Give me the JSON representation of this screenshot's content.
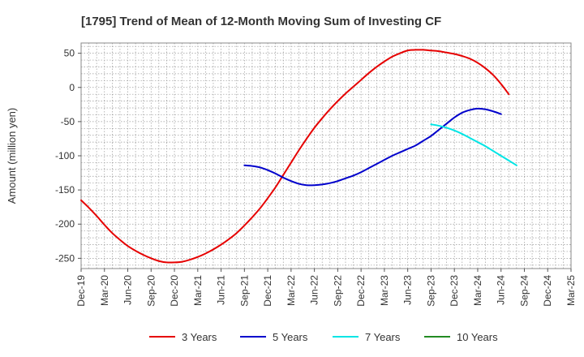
{
  "chart_data": {
    "type": "line",
    "title": "[1795]  Trend of Mean of 12-Month Moving Sum of Investing CF",
    "ylabel": "Amount (million yen)",
    "xlabel": "",
    "ylim": [
      -265,
      65
    ],
    "yticks": [
      50,
      0,
      -50,
      -100,
      -150,
      -200,
      -250
    ],
    "x_tick_labels": [
      "Dec-19",
      "Mar-20",
      "Jun-20",
      "Sep-20",
      "Dec-20",
      "Mar-21",
      "Jun-21",
      "Sep-21",
      "Dec-21",
      "Mar-22",
      "Jun-22",
      "Sep-22",
      "Dec-22",
      "Mar-23",
      "Jun-23",
      "Sep-23",
      "Dec-23",
      "Mar-24",
      "Jun-24",
      "Sep-24",
      "Dec-24",
      "Mar-25"
    ],
    "grid": true,
    "legend_position": "bottom",
    "series": [
      {
        "name": "3 Years",
        "color": "#e60000",
        "points": [
          [
            "Dec-19",
            -165
          ],
          [
            "Jan-20",
            -176
          ],
          [
            "Feb-20",
            -188
          ],
          [
            "Mar-20",
            -201
          ],
          [
            "Apr-20",
            -213
          ],
          [
            "May-20",
            -223
          ],
          [
            "Jun-20",
            -232
          ],
          [
            "Jul-20",
            -239
          ],
          [
            "Aug-20",
            -245
          ],
          [
            "Sep-20",
            -250
          ],
          [
            "Oct-20",
            -254
          ],
          [
            "Nov-20",
            -256
          ],
          [
            "Dec-20",
            -256
          ],
          [
            "Jan-21",
            -255
          ],
          [
            "Feb-21",
            -252
          ],
          [
            "Mar-21",
            -248
          ],
          [
            "Apr-21",
            -243
          ],
          [
            "May-21",
            -237
          ],
          [
            "Jun-21",
            -230
          ],
          [
            "Jul-21",
            -222
          ],
          [
            "Aug-21",
            -213
          ],
          [
            "Sep-21",
            -202
          ],
          [
            "Oct-21",
            -190
          ],
          [
            "Nov-21",
            -177
          ],
          [
            "Dec-21",
            -162
          ],
          [
            "Jan-22",
            -146
          ],
          [
            "Feb-22",
            -128
          ],
          [
            "Mar-22",
            -110
          ],
          [
            "Apr-22",
            -92
          ],
          [
            "May-22",
            -75
          ],
          [
            "Jun-22",
            -59
          ],
          [
            "Jul-22",
            -45
          ],
          [
            "Aug-22",
            -32
          ],
          [
            "Sep-22",
            -20
          ],
          [
            "Oct-22",
            -9
          ],
          [
            "Nov-22",
            1
          ],
          [
            "Dec-22",
            11
          ],
          [
            "Jan-23",
            21
          ],
          [
            "Feb-23",
            30
          ],
          [
            "Mar-23",
            38
          ],
          [
            "Apr-23",
            45
          ],
          [
            "May-23",
            50
          ],
          [
            "Jun-23",
            54
          ],
          [
            "Jul-23",
            55
          ],
          [
            "Aug-23",
            55
          ],
          [
            "Sep-23",
            54
          ],
          [
            "Oct-23",
            53
          ],
          [
            "Nov-23",
            51
          ],
          [
            "Dec-23",
            49
          ],
          [
            "Jan-24",
            46
          ],
          [
            "Feb-24",
            42
          ],
          [
            "Mar-24",
            36
          ],
          [
            "Apr-24",
            28
          ],
          [
            "May-24",
            18
          ],
          [
            "Jun-24",
            5
          ],
          [
            "Jul-24",
            -10
          ]
        ]
      },
      {
        "name": "5 Years",
        "color": "#0000cc",
        "points": [
          [
            "Sep-21",
            -114
          ],
          [
            "Oct-21",
            -115
          ],
          [
            "Nov-21",
            -117
          ],
          [
            "Dec-21",
            -121
          ],
          [
            "Jan-22",
            -126
          ],
          [
            "Feb-22",
            -132
          ],
          [
            "Mar-22",
            -137
          ],
          [
            "Apr-22",
            -141
          ],
          [
            "May-22",
            -143
          ],
          [
            "Jun-22",
            -143
          ],
          [
            "Jul-22",
            -142
          ],
          [
            "Aug-22",
            -140
          ],
          [
            "Sep-22",
            -137
          ],
          [
            "Oct-22",
            -133
          ],
          [
            "Nov-22",
            -129
          ],
          [
            "Dec-22",
            -124
          ],
          [
            "Jan-23",
            -118
          ],
          [
            "Feb-23",
            -112
          ],
          [
            "Mar-23",
            -106
          ],
          [
            "Apr-23",
            -100
          ],
          [
            "May-23",
            -95
          ],
          [
            "Jun-23",
            -90
          ],
          [
            "Jul-23",
            -85
          ],
          [
            "Aug-23",
            -78
          ],
          [
            "Sep-23",
            -71
          ],
          [
            "Oct-23",
            -62
          ],
          [
            "Nov-23",
            -53
          ],
          [
            "Dec-23",
            -44
          ],
          [
            "Jan-24",
            -37
          ],
          [
            "Feb-24",
            -33
          ],
          [
            "Mar-24",
            -31
          ],
          [
            "Apr-24",
            -32
          ],
          [
            "May-24",
            -35
          ],
          [
            "Jun-24",
            -39
          ]
        ]
      },
      {
        "name": "7 Years",
        "color": "#00e5e5",
        "points": [
          [
            "Sep-23",
            -54
          ],
          [
            "Oct-23",
            -56
          ],
          [
            "Nov-23",
            -59
          ],
          [
            "Dec-23",
            -63
          ],
          [
            "Jan-24",
            -68
          ],
          [
            "Feb-24",
            -74
          ],
          [
            "Mar-24",
            -80
          ],
          [
            "Apr-24",
            -86
          ],
          [
            "May-24",
            -93
          ],
          [
            "Jun-24",
            -100
          ],
          [
            "Jul-24",
            -107
          ],
          [
            "Aug-24",
            -114
          ]
        ]
      },
      {
        "name": "10 Years",
        "color": "#228b22",
        "points": []
      }
    ]
  }
}
